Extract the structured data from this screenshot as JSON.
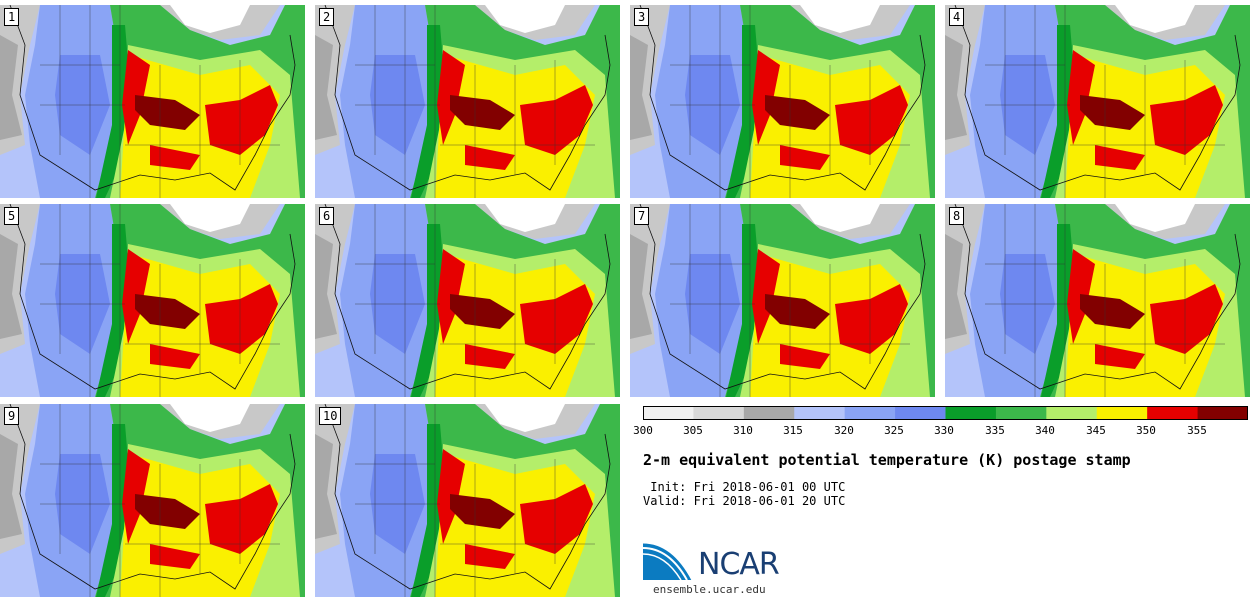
{
  "stamps": [
    {
      "label": "1"
    },
    {
      "label": "2"
    },
    {
      "label": "3"
    },
    {
      "label": "4"
    },
    {
      "label": "5"
    },
    {
      "label": "6"
    },
    {
      "label": "7"
    },
    {
      "label": "8"
    },
    {
      "label": "9"
    },
    {
      "label": "10"
    }
  ],
  "colorbar": {
    "ticks": [
      "300",
      "305",
      "310",
      "315",
      "320",
      "325",
      "330",
      "335",
      "340",
      "345",
      "350",
      "355"
    ],
    "colors": [
      "#f0f0f0",
      "#d8d8d8",
      "#a8a8a8",
      "#b4c4fa",
      "#8aa4f5",
      "#6e88f0",
      "#0a9e2a",
      "#3cb84a",
      "#b4ee6a",
      "#faf000",
      "#e60000",
      "#820000"
    ]
  },
  "map_colors": {
    "gray_light": "#c8c8c8",
    "gray_dark": "#a8a8a8",
    "blue_light": "#b4c4fa",
    "blue_mid": "#8aa4f5",
    "blue_dark": "#6e88f0",
    "green_dark": "#0a9e2a",
    "green_mid": "#3cb84a",
    "green_light": "#b4ee6a",
    "yellow": "#faf000",
    "red": "#e60000",
    "dark_red": "#820000",
    "white": "#ffffff"
  },
  "title": "2-m equivalent potential temperature (K) postage stamp",
  "init": " Init: Fri 2018-06-01 00 UTC",
  "valid": "Valid: Fri 2018-06-01 20 UTC",
  "logo": {
    "text": "NCAR",
    "site": "ensemble.ucar.edu",
    "brand_color": "#1a3f73",
    "accent": "#0b7bc1"
  }
}
